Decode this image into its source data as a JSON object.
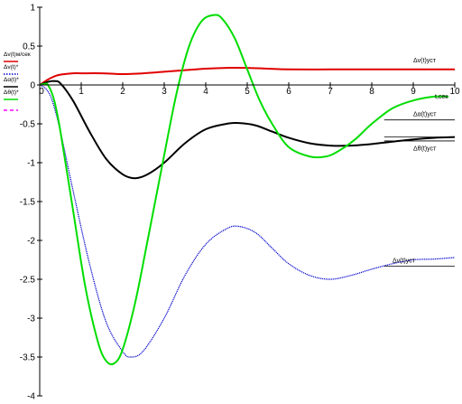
{
  "chart_data": {
    "type": "line",
    "xlabel": "t,сек",
    "ylabel": "",
    "xlim": [
      0,
      10
    ],
    "ylim": [
      -4,
      1
    ],
    "x_ticks": [
      0,
      1,
      2,
      3,
      4,
      5,
      6,
      7,
      8,
      9,
      10
    ],
    "y_ticks": [
      1,
      0.5,
      0,
      -0.5,
      -1,
      -1.5,
      -2,
      -2.5,
      -3,
      -3.5,
      -4
    ],
    "x_tick_labels": [
      "0",
      "1",
      "2",
      "3",
      "4",
      "5",
      "6",
      "7",
      "8",
      "9",
      "10"
    ],
    "y_tick_labels": [
      "1",
      "0.5",
      "0",
      "-0.5",
      "-1",
      "-1.5",
      "-2",
      "-2.5",
      "-3",
      "-3.5",
      "-4"
    ],
    "legend": [
      {
        "label": "Δv(t)м/сек",
        "color": "#e00000",
        "style": "solid"
      },
      {
        "label": "Δv(t)*",
        "color": "#0000cc",
        "style": "dotted"
      },
      {
        "label": "Δα(t)*",
        "color": "#000000",
        "style": "solid"
      },
      {
        "label": "Δθ(t)*",
        "color": "#00dd00",
        "style": "solid"
      },
      {
        "label": "",
        "color": "#ff00ff",
        "style": "dashed"
      }
    ],
    "annotations": [
      {
        "label": "Δv(t)уст",
        "x": 9.0,
        "y": 0.2
      },
      {
        "label": "Δα(t)уст",
        "x": 9.0,
        "y": -0.45
      },
      {
        "label": "Δθ(t)уст",
        "x": 9.0,
        "y": -0.75
      },
      {
        "label": "Δv(t)уст",
        "x": 8.5,
        "y": -2.33
      }
    ],
    "steady_lines": [
      {
        "y": -0.45,
        "x0": 8.3,
        "x1": 10.0
      },
      {
        "y": -0.67,
        "x0": 8.3,
        "x1": 10.0
      },
      {
        "y": -0.72,
        "x0": 8.3,
        "x1": 10.0
      },
      {
        "y": -2.33,
        "x0": 8.3,
        "x1": 10.0
      }
    ],
    "series": [
      {
        "color": "#e00000",
        "style": "solid",
        "x": [
          0,
          0.2,
          0.4,
          0.6,
          0.8,
          1,
          1.5,
          2,
          2.5,
          3,
          3.5,
          4,
          4.5,
          5,
          5.5,
          6,
          7,
          8,
          9,
          10
        ],
        "y": [
          0,
          0.07,
          0.12,
          0.14,
          0.15,
          0.15,
          0.15,
          0.14,
          0.15,
          0.17,
          0.19,
          0.21,
          0.22,
          0.22,
          0.21,
          0.2,
          0.2,
          0.2,
          0.2,
          0.2
        ]
      },
      {
        "color": "#0000cc",
        "style": "dotted",
        "x": [
          0,
          0.15,
          0.3,
          0.5,
          0.8,
          1.2,
          1.6,
          2.0,
          2.2,
          2.5,
          3.0,
          3.5,
          4.0,
          4.5,
          4.8,
          5.2,
          5.6,
          6.0,
          6.5,
          7.0,
          7.5,
          8.0,
          8.5,
          9.0,
          9.5,
          10.0
        ],
        "y": [
          0,
          -0.05,
          -0.2,
          -0.6,
          -1.35,
          -2.3,
          -3.05,
          -3.43,
          -3.5,
          -3.42,
          -3.0,
          -2.45,
          -2.05,
          -1.85,
          -1.82,
          -1.9,
          -2.1,
          -2.3,
          -2.45,
          -2.5,
          -2.45,
          -2.37,
          -2.3,
          -2.25,
          -2.24,
          -2.22
        ]
      },
      {
        "color": "#000000",
        "style": "solid",
        "x": [
          0,
          0.1,
          0.2,
          0.35,
          0.5,
          0.8,
          1.2,
          1.6,
          2.0,
          2.3,
          2.6,
          3.0,
          3.5,
          4.0,
          4.5,
          4.8,
          5.2,
          5.6,
          6.0,
          6.5,
          7.0,
          7.5,
          8.0,
          8.5,
          9.0,
          9.5,
          10.0
        ],
        "y": [
          0,
          0.02,
          0.04,
          0.05,
          0.02,
          -0.2,
          -0.6,
          -0.95,
          -1.15,
          -1.2,
          -1.15,
          -1.0,
          -0.75,
          -0.57,
          -0.5,
          -0.49,
          -0.52,
          -0.6,
          -0.68,
          -0.75,
          -0.78,
          -0.78,
          -0.76,
          -0.73,
          -0.7,
          -0.68,
          -0.67
        ]
      },
      {
        "color": "#00dd00",
        "style": "solid",
        "x": [
          0,
          0.1,
          0.2,
          0.35,
          0.5,
          0.8,
          1.1,
          1.4,
          1.6,
          1.8,
          2.0,
          2.3,
          2.6,
          3.0,
          3.3,
          3.6,
          3.9,
          4.2,
          4.4,
          4.7,
          5.0,
          5.3,
          5.6,
          6.0,
          6.5,
          6.9,
          7.2,
          7.6,
          8.0,
          8.5,
          9.0,
          9.5,
          9.85
        ],
        "y": [
          0,
          0.01,
          0.0,
          -0.2,
          -0.6,
          -1.6,
          -2.6,
          -3.3,
          -3.55,
          -3.58,
          -3.4,
          -2.8,
          -2.0,
          -0.9,
          -0.1,
          0.5,
          0.82,
          0.9,
          0.85,
          0.6,
          0.2,
          -0.2,
          -0.5,
          -0.8,
          -0.92,
          -0.92,
          -0.85,
          -0.7,
          -0.5,
          -0.3,
          -0.2,
          -0.15,
          -0.15
        ]
      }
    ]
  }
}
